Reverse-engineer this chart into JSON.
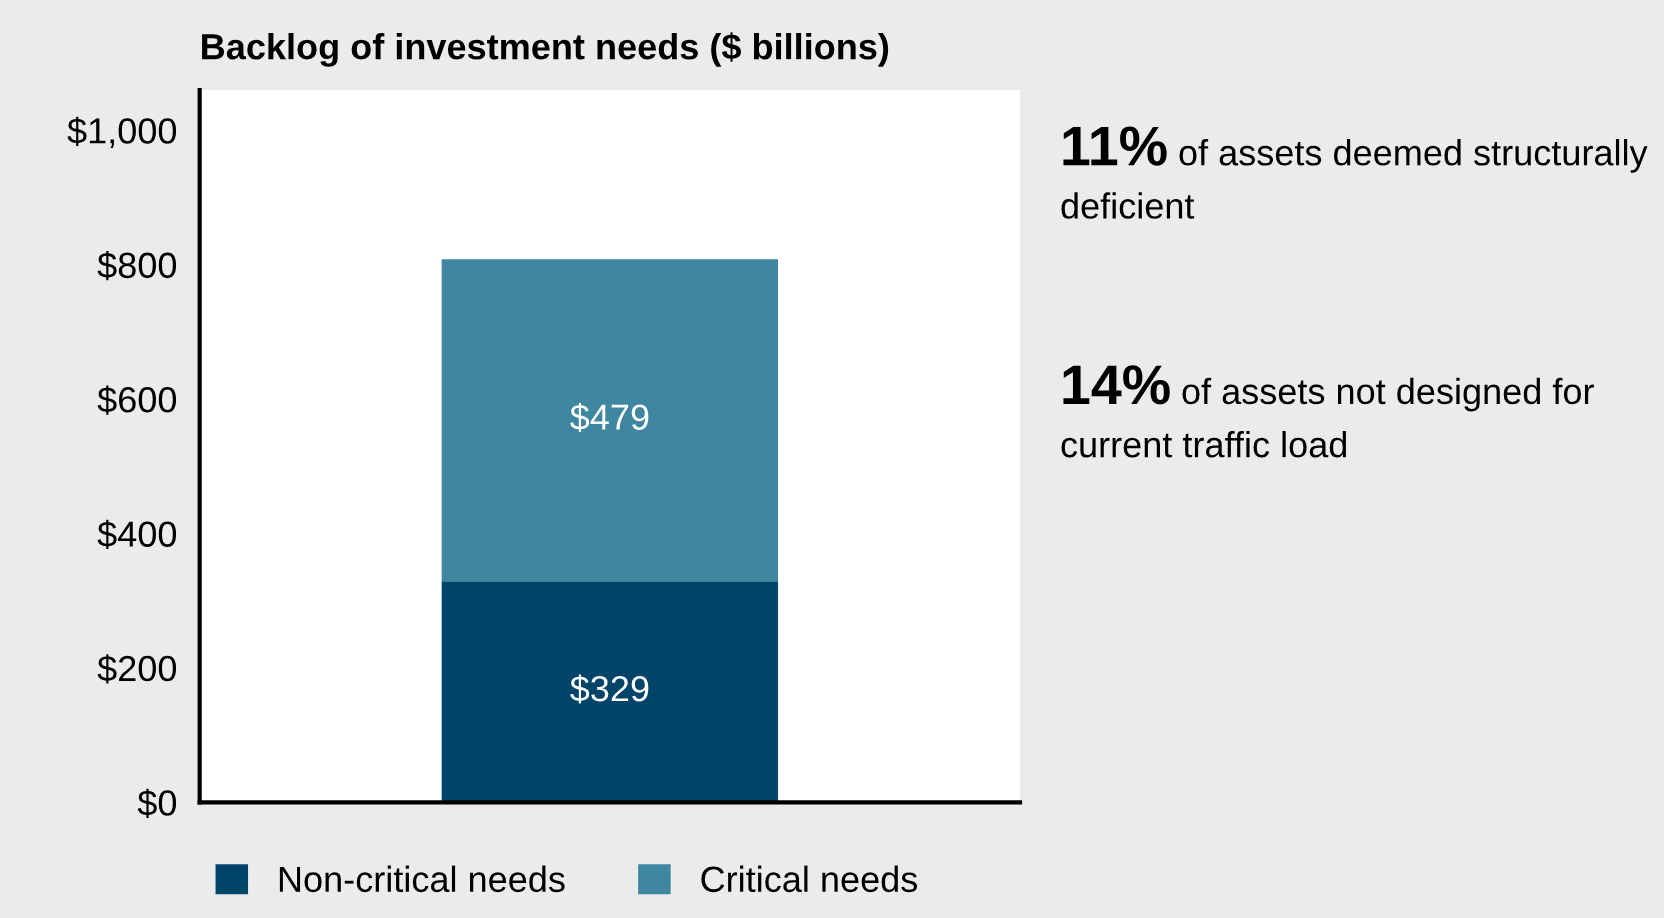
{
  "chart_data": {
    "type": "bar",
    "title": "Backlog of investment needs ($ billions)",
    "categories": [
      null
    ],
    "stacked": true,
    "series": [
      {
        "name": "Non-critical needs",
        "color": "#00446a",
        "values": [
          329
        ],
        "value_labels": [
          "$329"
        ]
      },
      {
        "name": "Critical needs",
        "color": "#3f87a0",
        "values": [
          479
        ],
        "value_labels": [
          "$479"
        ]
      }
    ],
    "ylim": [
      0,
      1060
    ],
    "yticks": [
      {
        "value": 0,
        "label": "$0"
      },
      {
        "value": 200,
        "label": "$200"
      },
      {
        "value": 400,
        "label": "$400"
      },
      {
        "value": 600,
        "label": "$600"
      },
      {
        "value": 800,
        "label": "$800"
      },
      {
        "value": 1000,
        "label": "$1,000"
      }
    ],
    "grid": false,
    "legend": "bottom",
    "annotations": [
      "11% of assets deemed structurally deficient",
      "14% of assets not designed for current traffic load"
    ]
  }
}
